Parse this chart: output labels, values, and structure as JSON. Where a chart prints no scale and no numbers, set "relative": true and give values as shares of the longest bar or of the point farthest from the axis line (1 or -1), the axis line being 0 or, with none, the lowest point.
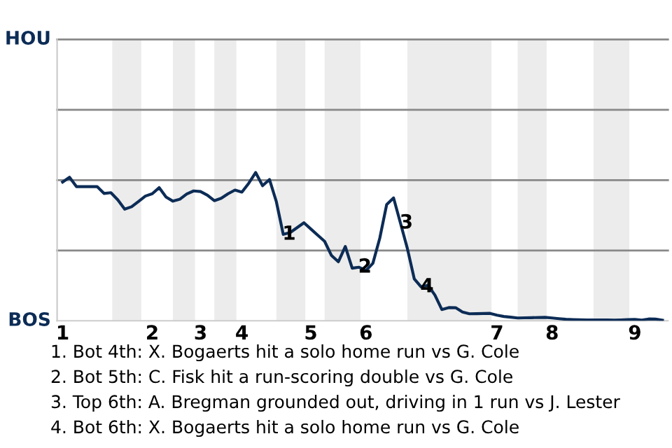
{
  "chart_data": {
    "type": "line",
    "relative": true,
    "categories": [
      "1",
      null,
      null,
      null,
      null,
      null,
      null,
      null,
      null,
      null,
      null,
      null,
      null,
      "2",
      null,
      null,
      null,
      null,
      null,
      null,
      "3",
      null,
      null,
      null,
      null,
      null,
      "4",
      null,
      null,
      null,
      null,
      null,
      null,
      null,
      null,
      null,
      "5",
      null,
      null,
      null,
      null,
      null,
      null,
      null,
      "6",
      null,
      null,
      null,
      null,
      null,
      null,
      null,
      null,
      null,
      null,
      null,
      null,
      null,
      null,
      null,
      null,
      null,
      null,
      "7",
      null,
      null,
      null,
      null,
      null,
      null,
      null,
      "8",
      null,
      null,
      null,
      null,
      null,
      null,
      null,
      null,
      null,
      null,
      null,
      "9",
      null,
      null,
      null,
      null
    ],
    "series": [
      {
        "color": "#0c2c56",
        "values": [
          0.936,
          0.968,
          0.905,
          0.905,
          0.905,
          0.905,
          0.859,
          0.864,
          0.816,
          0.753,
          0.769,
          0.805,
          0.841,
          0.857,
          0.898,
          0.835,
          0.807,
          0.82,
          0.855,
          0.876,
          0.872,
          0.847,
          0.81,
          0.826,
          0.857,
          0.882,
          0.868,
          0.928,
          1,
          0.911,
          0.953,
          0.803,
          0.583,
          0.595,
          0.628,
          0.661,
          0.619,
          0.577,
          0.536,
          0.44,
          0.398,
          0.501,
          0.355,
          0.361,
          0.339,
          0.388,
          0.557,
          0.784,
          0.829,
          0.659,
          0.488,
          0.283,
          0.228,
          0.24,
          0.173,
          0.076,
          0.089,
          0.088,
          0.059,
          0.047,
          0.048,
          0.049,
          0.05,
          0.038,
          0.029,
          0.024,
          0.019,
          0.02,
          0.021,
          0.022,
          0.023,
          0.019,
          0.014,
          0.01,
          0.008,
          0.007,
          0.006,
          0.006,
          0.005,
          0.005,
          0.004,
          0.006,
          0.008,
          0.009,
          0.004,
          0.012,
          0.011,
          0.004
        ],
        "name": null
      }
    ],
    "ref_lines": [
      {
        "axis": "y",
        "value": 0.474,
        "color": "#888888"
      },
      {
        "axis": "y",
        "value": 0.949,
        "color": "#888888"
      },
      {
        "axis": "y",
        "value": 1.423,
        "color": "#888888"
      },
      {
        "axis": "y",
        "value": 1.898,
        "color": "#888888"
      }
    ],
    "annotations": [
      {
        "text": "1",
        "y": 0.583
      },
      {
        "text": "2",
        "y": 0.361
      },
      {
        "text": "3",
        "y": 0.659
      },
      {
        "text": "4",
        "y": 0.228
      },
      "HOU",
      "BOS",
      "1. Bot 4th: X. Bogaerts hit a solo home run vs G. Cole",
      "2. Bot 5th: C. Fisk hit a run-scoring double vs G. Cole",
      "3. Top 6th: A. Bregman grounded out, driving in 1 run vs J. Lester",
      "4. Bot 6th: X. Bogaerts hit a solo home run vs G. Cole"
    ]
  }
}
